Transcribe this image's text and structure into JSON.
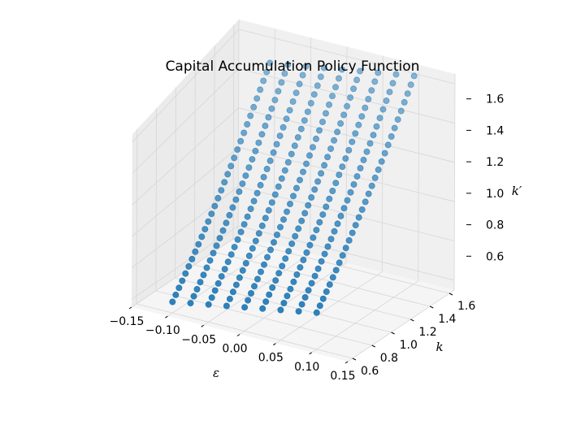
{
  "chart_data": {
    "type": "scatter",
    "projection": "3d",
    "title": "Capital Accumulation Policy Function",
    "xlabel": "ε",
    "ylabel": "k",
    "zlabel": "k′",
    "xlim": [
      -0.15,
      0.15
    ],
    "ylim": [
      0.55,
      1.65
    ],
    "zlim": [
      0.55,
      1.65
    ],
    "xticks": [
      "−0.15",
      "−0.10",
      "−0.05",
      "0.00",
      "0.05",
      "0.10",
      "0.15"
    ],
    "yticks": [
      "0.6",
      "0.8",
      "1.0",
      "1.2",
      "1.4",
      "1.6"
    ],
    "zticks": [
      "0.6",
      "0.8",
      "1.0",
      "1.2",
      "1.4",
      "1.6"
    ],
    "grid": true,
    "color": "#1f77b4",
    "marker": "circle",
    "epsilon_values": [
      -0.1,
      -0.075,
      -0.05,
      -0.025,
      0.0,
      0.025,
      0.05,
      0.075,
      0.1
    ],
    "k_range": [
      0.6,
      1.6
    ],
    "points_per_series": 31,
    "policy": {
      "k_prime_at_k_min": [
        0.62,
        0.64,
        0.66,
        0.68,
        0.7,
        0.72,
        0.74,
        0.76,
        0.78
      ],
      "k_prime_at_k_max": [
        1.5,
        1.515,
        1.53,
        1.545,
        1.56,
        1.575,
        1.59,
        1.605,
        1.62
      ]
    }
  }
}
